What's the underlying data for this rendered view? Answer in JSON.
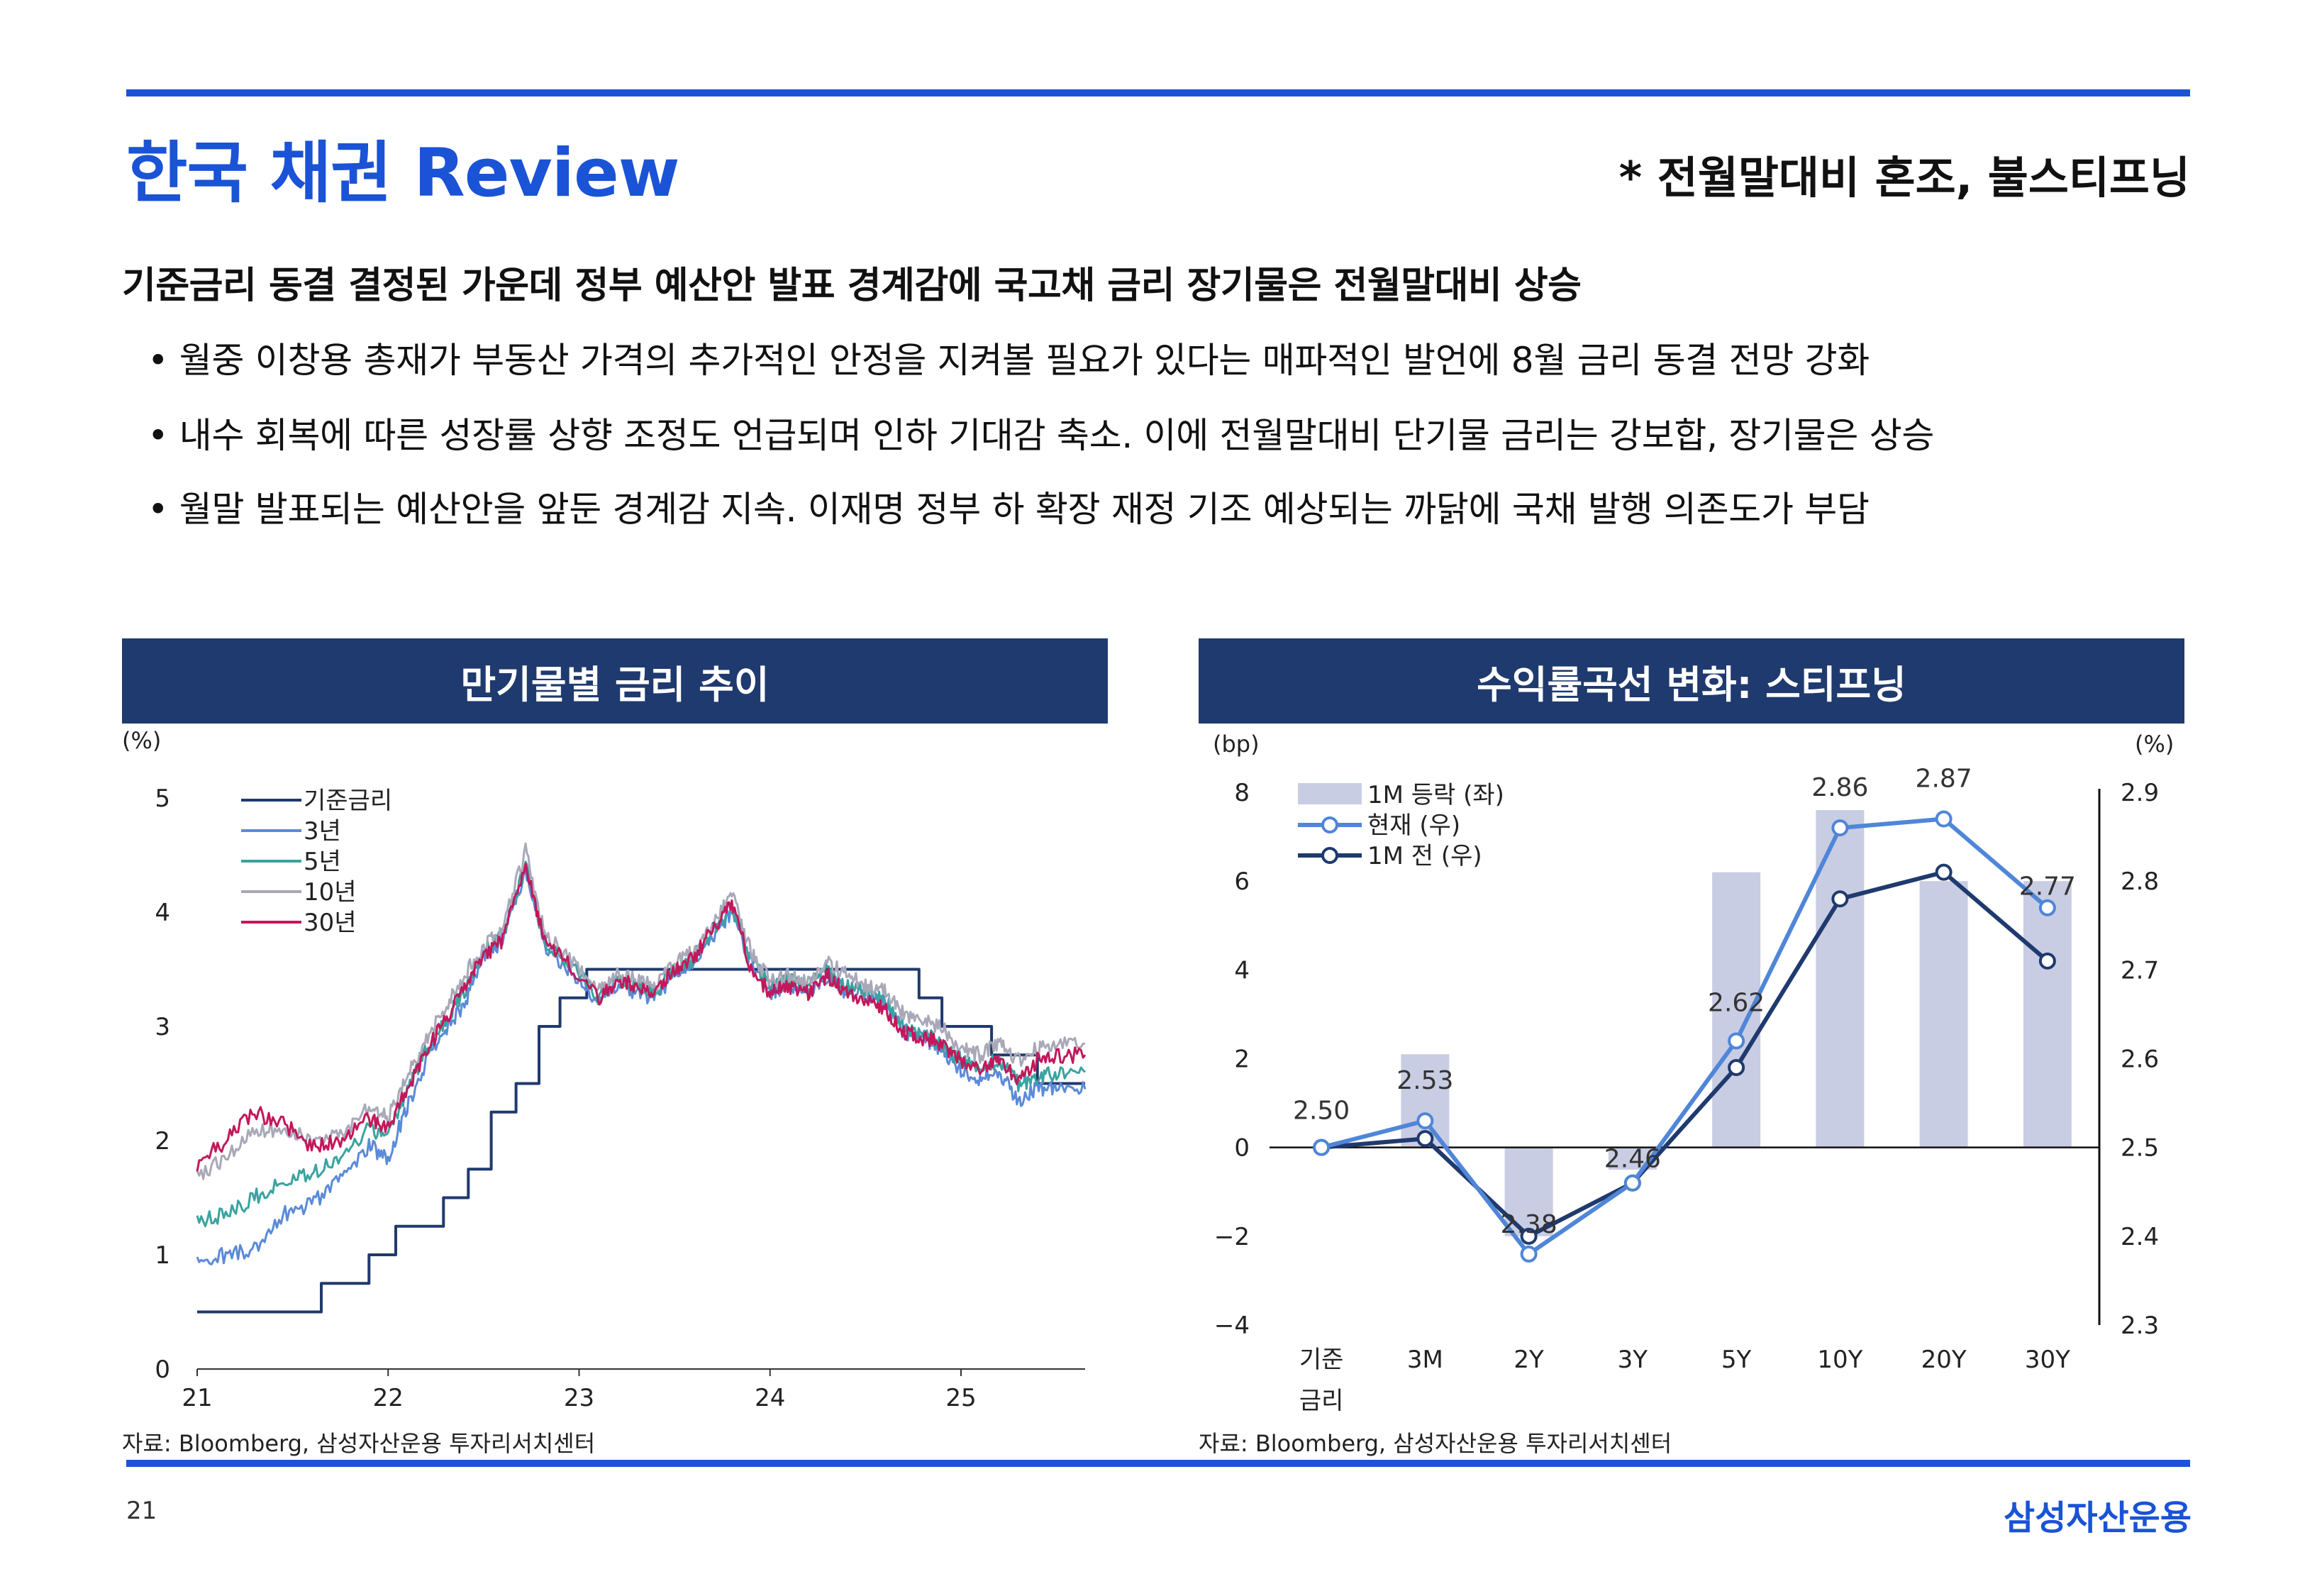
{
  "header": {
    "title": "한국 채권 Review",
    "subtitle": "* 전월말대비 혼조, 불스티프닝"
  },
  "headline": "기준금리 동결 결정된 가운데 정부 예산안 발표 경계감에 국고채 금리 장기물은 전월말대비 상승",
  "bullets": [
    "• 월중 이창용 총재가 부동산 가격의 추가적인 안정을 지켜볼 필요가 있다는 매파적인 발언에 8월 금리 동결 전망 강화",
    "• 내수 회복에 따른 성장률 상향 조정도 언급되며 인하 기대감 축소. 이에 전월말대비 단기물 금리는 강보합, 장기물은 상승",
    "• 월말 발표되는 예산안을 앞둔 경계감 지속. 이재명 정부 하 확장 재정 기조 예상되는 까닭에 국채 발행 의존도가 부담"
  ],
  "left_panel": {
    "title": "만기물별 금리 추이",
    "source": "자료: Bloomberg, 삼성자산운용 투자리서치센터"
  },
  "right_panel": {
    "title": "수익률곡선 변화: 스티프닝",
    "source": "자료: Bloomberg, 삼성자산운용 투자리서치센터"
  },
  "footer": {
    "page_number": "21",
    "brand": "삼성자산운용"
  },
  "chart_data": [
    {
      "type": "line",
      "title": "만기물별 금리 추이",
      "ylabel": "(%)",
      "ylim": [
        0,
        5
      ],
      "yticks": [
        "0",
        "1",
        "2",
        "3",
        "4",
        "5"
      ],
      "xlim": [
        21,
        25.65
      ],
      "xticks": [
        "21",
        "22",
        "23",
        "24",
        "25"
      ],
      "series": [
        {
          "name": "기준금리",
          "color": "#1f3a6e",
          "points": [
            [
              21.0,
              0.5
            ],
            [
              21.65,
              0.5
            ],
            [
              21.65,
              0.75
            ],
            [
              21.9,
              0.75
            ],
            [
              21.9,
              1.0
            ],
            [
              22.04,
              1.0
            ],
            [
              22.04,
              1.25
            ],
            [
              22.29,
              1.25
            ],
            [
              22.29,
              1.5
            ],
            [
              22.42,
              1.5
            ],
            [
              22.42,
              1.75
            ],
            [
              22.54,
              1.75
            ],
            [
              22.54,
              2.25
            ],
            [
              22.67,
              2.25
            ],
            [
              22.67,
              2.5
            ],
            [
              22.79,
              2.5
            ],
            [
              22.79,
              3.0
            ],
            [
              22.9,
              3.0
            ],
            [
              22.9,
              3.25
            ],
            [
              23.04,
              3.25
            ],
            [
              23.04,
              3.5
            ],
            [
              24.78,
              3.5
            ],
            [
              24.78,
              3.25
            ],
            [
              24.9,
              3.25
            ],
            [
              24.9,
              3.0
            ],
            [
              25.16,
              3.0
            ],
            [
              25.16,
              2.75
            ],
            [
              25.4,
              2.75
            ],
            [
              25.4,
              2.5
            ],
            [
              25.65,
              2.5
            ]
          ]
        },
        {
          "name": "3년",
          "color": "#5b8ad8",
          "points": [
            [
              21.0,
              0.95
            ],
            [
              21.15,
              1.0
            ],
            [
              21.3,
              1.05
            ],
            [
              21.45,
              1.35
            ],
            [
              21.6,
              1.45
            ],
            [
              21.75,
              1.65
            ],
            [
              21.9,
              1.95
            ],
            [
              22.0,
              1.85
            ],
            [
              22.1,
              2.3
            ],
            [
              22.2,
              2.7
            ],
            [
              22.3,
              2.95
            ],
            [
              22.4,
              3.2
            ],
            [
              22.5,
              3.6
            ],
            [
              22.6,
              3.75
            ],
            [
              22.72,
              4.35
            ],
            [
              22.82,
              3.7
            ],
            [
              22.95,
              3.5
            ],
            [
              23.1,
              3.2
            ],
            [
              23.2,
              3.35
            ],
            [
              23.3,
              3.3
            ],
            [
              23.4,
              3.25
            ],
            [
              23.5,
              3.45
            ],
            [
              23.6,
              3.55
            ],
            [
              23.7,
              3.8
            ],
            [
              23.8,
              4.0
            ],
            [
              23.9,
              3.55
            ],
            [
              24.0,
              3.3
            ],
            [
              24.1,
              3.35
            ],
            [
              24.2,
              3.3
            ],
            [
              24.3,
              3.45
            ],
            [
              24.4,
              3.3
            ],
            [
              24.5,
              3.25
            ],
            [
              24.6,
              3.2
            ],
            [
              24.7,
              2.95
            ],
            [
              24.8,
              2.9
            ],
            [
              24.9,
              2.8
            ],
            [
              25.0,
              2.6
            ],
            [
              25.1,
              2.55
            ],
            [
              25.2,
              2.6
            ],
            [
              25.3,
              2.35
            ],
            [
              25.4,
              2.45
            ],
            [
              25.5,
              2.45
            ],
            [
              25.65,
              2.45
            ]
          ]
        },
        {
          "name": "5년",
          "color": "#3aa3a0",
          "points": [
            [
              21.0,
              1.3
            ],
            [
              21.15,
              1.35
            ],
            [
              21.3,
              1.5
            ],
            [
              21.45,
              1.65
            ],
            [
              21.6,
              1.7
            ],
            [
              21.75,
              1.85
            ],
            [
              21.9,
              2.1
            ],
            [
              22.0,
              2.05
            ],
            [
              22.1,
              2.45
            ],
            [
              22.2,
              2.8
            ],
            [
              22.3,
              3.05
            ],
            [
              22.4,
              3.3
            ],
            [
              22.5,
              3.65
            ],
            [
              22.6,
              3.8
            ],
            [
              22.72,
              4.4
            ],
            [
              22.82,
              3.75
            ],
            [
              22.95,
              3.55
            ],
            [
              23.1,
              3.25
            ],
            [
              23.2,
              3.4
            ],
            [
              23.3,
              3.35
            ],
            [
              23.4,
              3.3
            ],
            [
              23.5,
              3.5
            ],
            [
              23.6,
              3.6
            ],
            [
              23.7,
              3.85
            ],
            [
              23.8,
              4.05
            ],
            [
              23.9,
              3.6
            ],
            [
              24.0,
              3.35
            ],
            [
              24.1,
              3.4
            ],
            [
              24.2,
              3.35
            ],
            [
              24.3,
              3.5
            ],
            [
              24.4,
              3.35
            ],
            [
              24.5,
              3.3
            ],
            [
              24.6,
              3.25
            ],
            [
              24.7,
              3.0
            ],
            [
              24.8,
              2.95
            ],
            [
              24.9,
              2.85
            ],
            [
              25.0,
              2.7
            ],
            [
              25.1,
              2.65
            ],
            [
              25.2,
              2.7
            ],
            [
              25.3,
              2.5
            ],
            [
              25.4,
              2.55
            ],
            [
              25.5,
              2.6
            ],
            [
              25.65,
              2.6
            ]
          ]
        },
        {
          "name": "10년",
          "color": "#a8a8b8",
          "points": [
            [
              21.0,
              1.7
            ],
            [
              21.15,
              1.85
            ],
            [
              21.3,
              2.1
            ],
            [
              21.45,
              2.1
            ],
            [
              21.6,
              2.0
            ],
            [
              21.75,
              2.05
            ],
            [
              21.9,
              2.3
            ],
            [
              22.0,
              2.2
            ],
            [
              22.1,
              2.55
            ],
            [
              22.2,
              2.9
            ],
            [
              22.3,
              3.15
            ],
            [
              22.4,
              3.45
            ],
            [
              22.5,
              3.7
            ],
            [
              22.6,
              3.85
            ],
            [
              22.72,
              4.55
            ],
            [
              22.82,
              3.8
            ],
            [
              22.95,
              3.6
            ],
            [
              23.1,
              3.3
            ],
            [
              23.2,
              3.45
            ],
            [
              23.3,
              3.4
            ],
            [
              23.4,
              3.35
            ],
            [
              23.5,
              3.55
            ],
            [
              23.6,
              3.65
            ],
            [
              23.7,
              3.9
            ],
            [
              23.8,
              4.15
            ],
            [
              23.9,
              3.65
            ],
            [
              24.0,
              3.4
            ],
            [
              24.1,
              3.45
            ],
            [
              24.2,
              3.4
            ],
            [
              24.3,
              3.55
            ],
            [
              24.4,
              3.45
            ],
            [
              24.5,
              3.35
            ],
            [
              24.6,
              3.3
            ],
            [
              24.7,
              3.1
            ],
            [
              24.8,
              3.05
            ],
            [
              24.9,
              3.0
            ],
            [
              25.0,
              2.8
            ],
            [
              25.1,
              2.75
            ],
            [
              25.2,
              2.85
            ],
            [
              25.3,
              2.7
            ],
            [
              25.4,
              2.8
            ],
            [
              25.5,
              2.85
            ],
            [
              25.65,
              2.85
            ]
          ]
        },
        {
          "name": "30년",
          "color": "#c2185b",
          "points": [
            [
              21.0,
              1.8
            ],
            [
              21.15,
              2.0
            ],
            [
              21.3,
              2.25
            ],
            [
              21.45,
              2.15
            ],
            [
              21.6,
              1.95
            ],
            [
              21.75,
              2.0
            ],
            [
              21.9,
              2.2
            ],
            [
              22.0,
              2.1
            ],
            [
              22.1,
              2.45
            ],
            [
              22.2,
              2.8
            ],
            [
              22.3,
              3.05
            ],
            [
              22.4,
              3.35
            ],
            [
              22.5,
              3.6
            ],
            [
              22.6,
              3.75
            ],
            [
              22.72,
              4.4
            ],
            [
              22.82,
              3.75
            ],
            [
              22.95,
              3.55
            ],
            [
              23.1,
              3.25
            ],
            [
              23.2,
              3.4
            ],
            [
              23.3,
              3.35
            ],
            [
              23.4,
              3.3
            ],
            [
              23.5,
              3.5
            ],
            [
              23.6,
              3.6
            ],
            [
              23.7,
              3.85
            ],
            [
              23.8,
              4.1
            ],
            [
              23.9,
              3.5
            ],
            [
              24.0,
              3.3
            ],
            [
              24.1,
              3.35
            ],
            [
              24.2,
              3.3
            ],
            [
              24.3,
              3.45
            ],
            [
              24.4,
              3.3
            ],
            [
              24.5,
              3.25
            ],
            [
              24.6,
              3.15
            ],
            [
              24.7,
              2.95
            ],
            [
              24.8,
              2.9
            ],
            [
              24.9,
              2.85
            ],
            [
              25.0,
              2.7
            ],
            [
              25.1,
              2.65
            ],
            [
              25.2,
              2.7
            ],
            [
              25.3,
              2.55
            ],
            [
              25.4,
              2.7
            ],
            [
              25.5,
              2.75
            ],
            [
              25.65,
              2.75
            ]
          ]
        }
      ]
    },
    {
      "type": "bar+line",
      "title": "수익률곡선 변화: 스티프닝",
      "categories": [
        "기준\n금리",
        "3M",
        "2Y",
        "3Y",
        "5Y",
        "10Y",
        "20Y",
        "30Y"
      ],
      "y_left": {
        "label": "(bp)",
        "ylim": [
          -4,
          8
        ],
        "ticks": [
          "8",
          "6",
          "4",
          "2",
          "0",
          "−2",
          "−4"
        ]
      },
      "y_right": {
        "label": "(%)",
        "ylim": [
          2.3,
          2.9
        ],
        "ticks": [
          "2.9",
          "2.8",
          "2.7",
          "2.6",
          "2.5",
          "2.4",
          "2.3"
        ]
      },
      "series": [
        {
          "name": "1M 등락 (좌)",
          "type": "bar",
          "axis": "left",
          "color": "#c9cde3",
          "values": [
            0,
            2.1,
            -2.0,
            -0.5,
            6.2,
            7.6,
            6.0,
            6.0
          ]
        },
        {
          "name": "현재 (우)",
          "type": "line",
          "axis": "right",
          "color": "#4f86d8",
          "values": [
            2.5,
            2.53,
            2.38,
            2.46,
            2.62,
            2.86,
            2.87,
            2.77
          ],
          "labels": [
            "2.50",
            "2.53",
            "2.38",
            "2.46",
            "2.62",
            "2.86",
            "2.87",
            "2.77"
          ]
        },
        {
          "name": "1M 전 (우)",
          "type": "line",
          "axis": "right",
          "color": "#1f3a6e",
          "values": [
            2.5,
            2.51,
            2.4,
            2.46,
            2.59,
            2.78,
            2.81,
            2.71
          ]
        }
      ]
    }
  ]
}
